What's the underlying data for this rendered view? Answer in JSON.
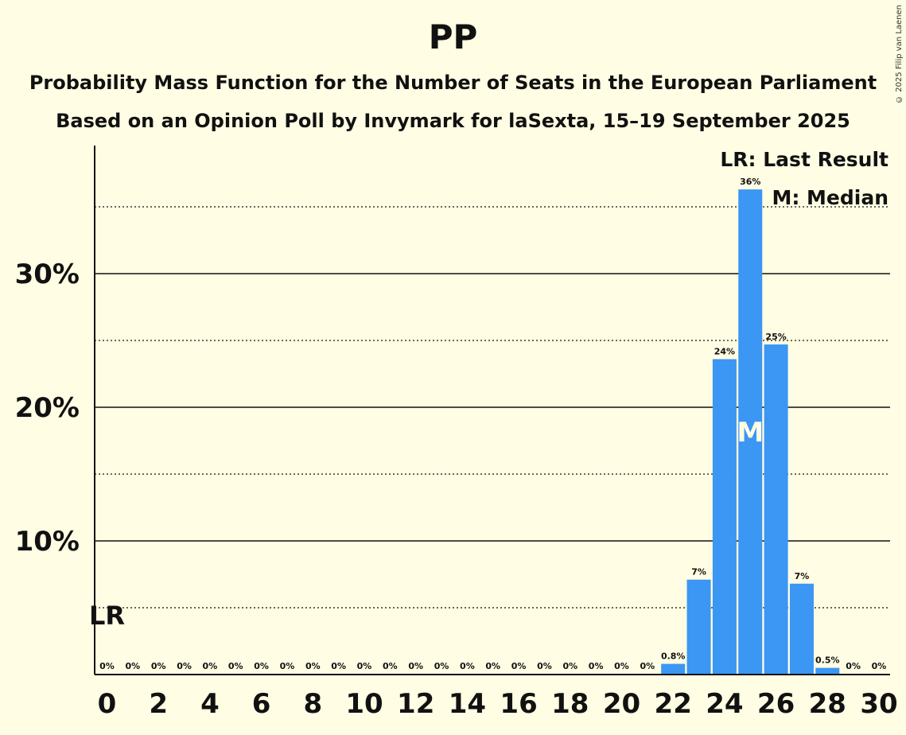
{
  "chart_data": {
    "type": "bar",
    "title": "PP",
    "subtitle": "Probability Mass Function for the Number of Seats in the European Parliament",
    "subtitle2": "Based on an Opinion Poll by Invymark for laSexta, 15–19 September 2025",
    "copyright": "© 2025 Filip van Laenen",
    "x": [
      0,
      1,
      2,
      3,
      4,
      5,
      6,
      7,
      8,
      9,
      10,
      11,
      12,
      13,
      14,
      15,
      16,
      17,
      18,
      19,
      20,
      21,
      22,
      23,
      24,
      25,
      26,
      27,
      28,
      29,
      30
    ],
    "values": [
      0,
      0,
      0,
      0,
      0,
      0,
      0,
      0,
      0,
      0,
      0,
      0,
      0,
      0,
      0,
      0,
      0,
      0,
      0,
      0,
      0,
      0,
      0.8,
      7.1,
      23.6,
      36.3,
      24.7,
      6.8,
      0.5,
      0,
      0
    ],
    "value_labels": [
      "0%",
      "0%",
      "0%",
      "0%",
      "0%",
      "0%",
      "0%",
      "0%",
      "0%",
      "0%",
      "0%",
      "0%",
      "0%",
      "0%",
      "0%",
      "0%",
      "0%",
      "0%",
      "0%",
      "0%",
      "0%",
      "0%",
      "0.8%",
      "7%",
      "24%",
      "36%",
      "25%",
      "7%",
      "0.5%",
      "0%",
      "0%"
    ],
    "x_tick_labels": [
      "0",
      "2",
      "4",
      "6",
      "8",
      "10",
      "12",
      "14",
      "16",
      "18",
      "20",
      "22",
      "24",
      "26",
      "28",
      "30"
    ],
    "y_ticks": [
      {
        "value": 10,
        "label": "10%"
      },
      {
        "value": 20,
        "label": "20%"
      },
      {
        "value": 30,
        "label": "30%"
      }
    ],
    "y_minor_gridlines": [
      5,
      15,
      25,
      35
    ],
    "ylim": [
      0,
      39.5
    ],
    "xlim": [
      -0.5,
      30.5
    ],
    "last_result": 0,
    "last_result_label": "LR",
    "median": 25,
    "median_label": "M",
    "legend": [
      "LR: Last Result",
      "M: Median"
    ],
    "legend_position": "top-right",
    "colors": {
      "background": "#FFFDE3",
      "bar": "#3B96F4",
      "text": "#111111",
      "median_text": "#FFFDE3"
    }
  }
}
